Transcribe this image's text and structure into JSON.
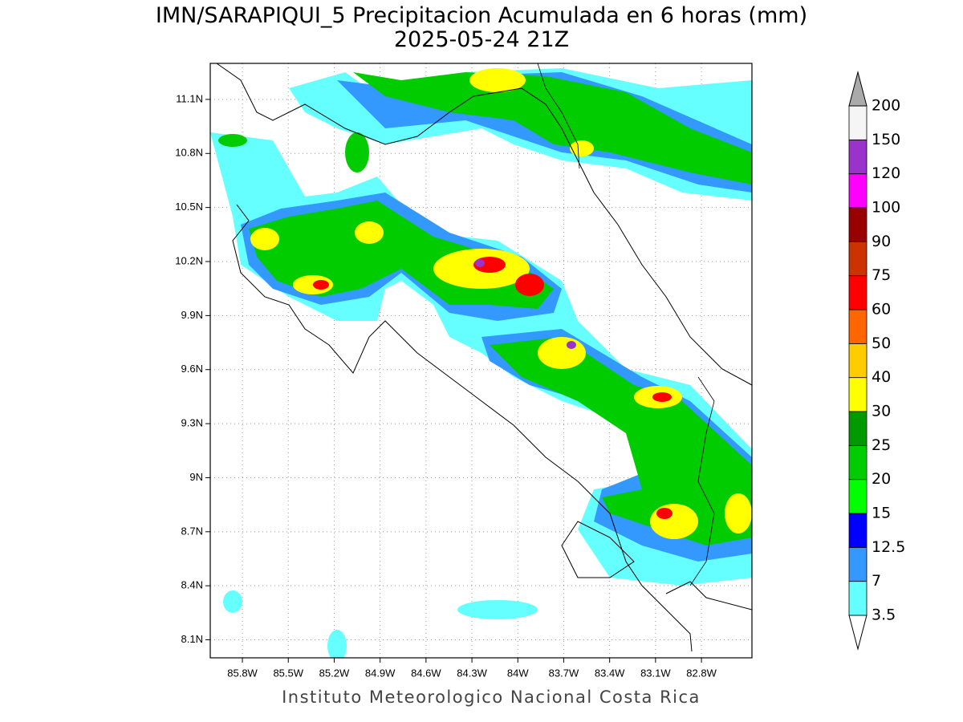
{
  "map": {
    "title": "IMN/SARAPIQUI_5 Precipitacion Acumulada en 6 horas (mm)",
    "subtitle": "2025-05-24 21Z",
    "footer": "Instituto Meteorologico Nacional Costa Rica",
    "xlim": [
      -86.01,
      -82.47
    ],
    "ylim": [
      8.0,
      11.3
    ],
    "xticks": [
      {
        "value": -85.8,
        "label": "85.8W"
      },
      {
        "value": -85.5,
        "label": "85.5W"
      },
      {
        "value": -85.2,
        "label": "85.2W"
      },
      {
        "value": -84.9,
        "label": "84.9W"
      },
      {
        "value": -84.6,
        "label": "84.6W"
      },
      {
        "value": -84.3,
        "label": "84.3W"
      },
      {
        "value": -84.0,
        "label": "84W"
      },
      {
        "value": -83.7,
        "label": "83.7W"
      },
      {
        "value": -83.4,
        "label": "83.4W"
      },
      {
        "value": -83.1,
        "label": "83.1W"
      },
      {
        "value": -82.8,
        "label": "82.8W"
      }
    ],
    "yticks": [
      {
        "value": 11.1,
        "label": "11.1N"
      },
      {
        "value": 10.8,
        "label": "10.8N"
      },
      {
        "value": 10.5,
        "label": "10.5N"
      },
      {
        "value": 10.2,
        "label": "10.2N"
      },
      {
        "value": 9.9,
        "label": "9.9N"
      },
      {
        "value": 9.6,
        "label": "9.6N"
      },
      {
        "value": 9.3,
        "label": "9.3N"
      },
      {
        "value": 9.0,
        "label": "9N"
      },
      {
        "value": 8.7,
        "label": "8.7N"
      },
      {
        "value": 8.4,
        "label": "8.4N"
      },
      {
        "value": 8.1,
        "label": "8.1N"
      }
    ],
    "grid": true,
    "colorbar": {
      "levels": [
        3.5,
        7,
        12.5,
        15,
        20,
        25,
        30,
        40,
        50,
        60,
        75,
        90,
        100,
        120,
        150,
        200
      ],
      "colors": [
        "#ffffff",
        "#66ffff",
        "#3399ff",
        "#0000ff",
        "#00ff00",
        "#00cc00",
        "#009900",
        "#ffff00",
        "#ffcc00",
        "#ff6600",
        "#ff0000",
        "#cc3300",
        "#990000",
        "#ff00ff",
        "#9933cc",
        "#f5f5f5",
        "#aaaaaa"
      ]
    }
  }
}
